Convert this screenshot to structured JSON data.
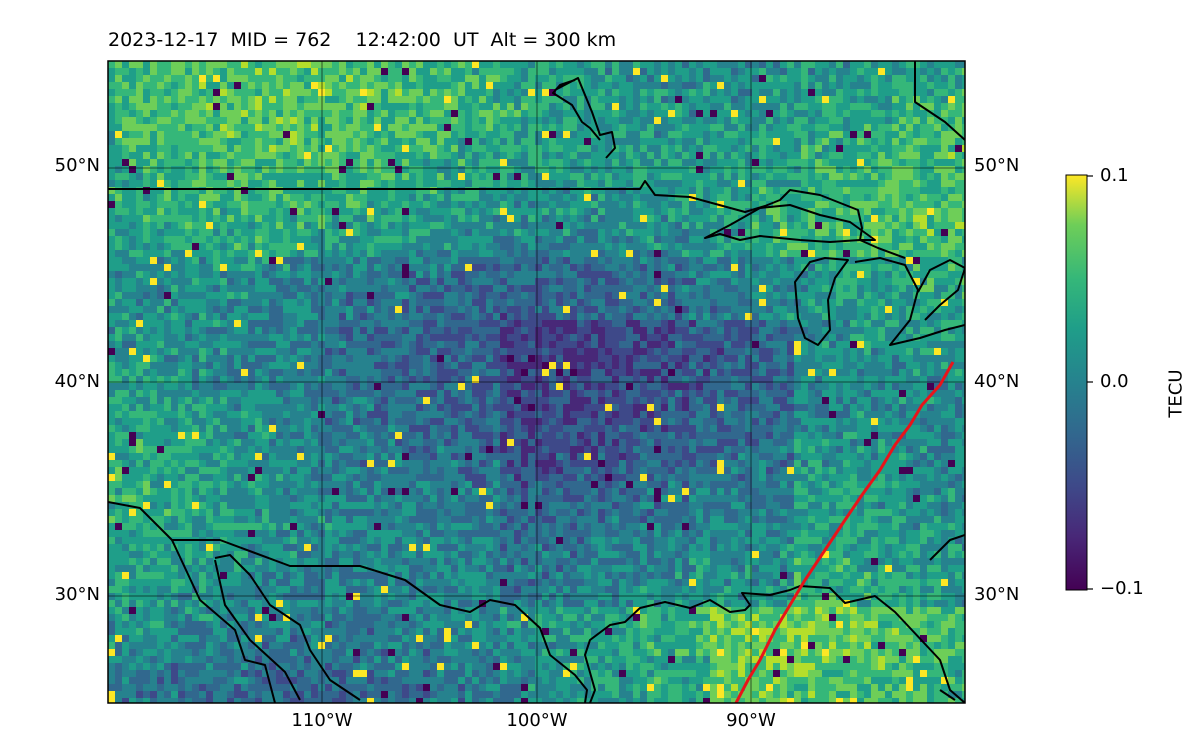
{
  "title": "2023-12-17  MID = 762    12:42:00  UT  Alt = 300 km",
  "map": {
    "lat_labels": [
      "50°N",
      "40°N",
      "30°N"
    ],
    "lon_labels": [
      "110°W",
      "100°W",
      "90°W"
    ],
    "extent": {
      "lon_min": -120,
      "lon_max": -80,
      "lat_min": 25,
      "lat_max": 55
    },
    "gridlines": true,
    "projection": "PlateCarree",
    "track_color": "#e8141a",
    "coastline_color": "#000000",
    "colormap": "viridis"
  },
  "colorbar": {
    "title": "TECU",
    "ticks": [
      "0.1",
      "0.0",
      "−0.1"
    ],
    "min": -0.1,
    "max": 0.1
  }
}
